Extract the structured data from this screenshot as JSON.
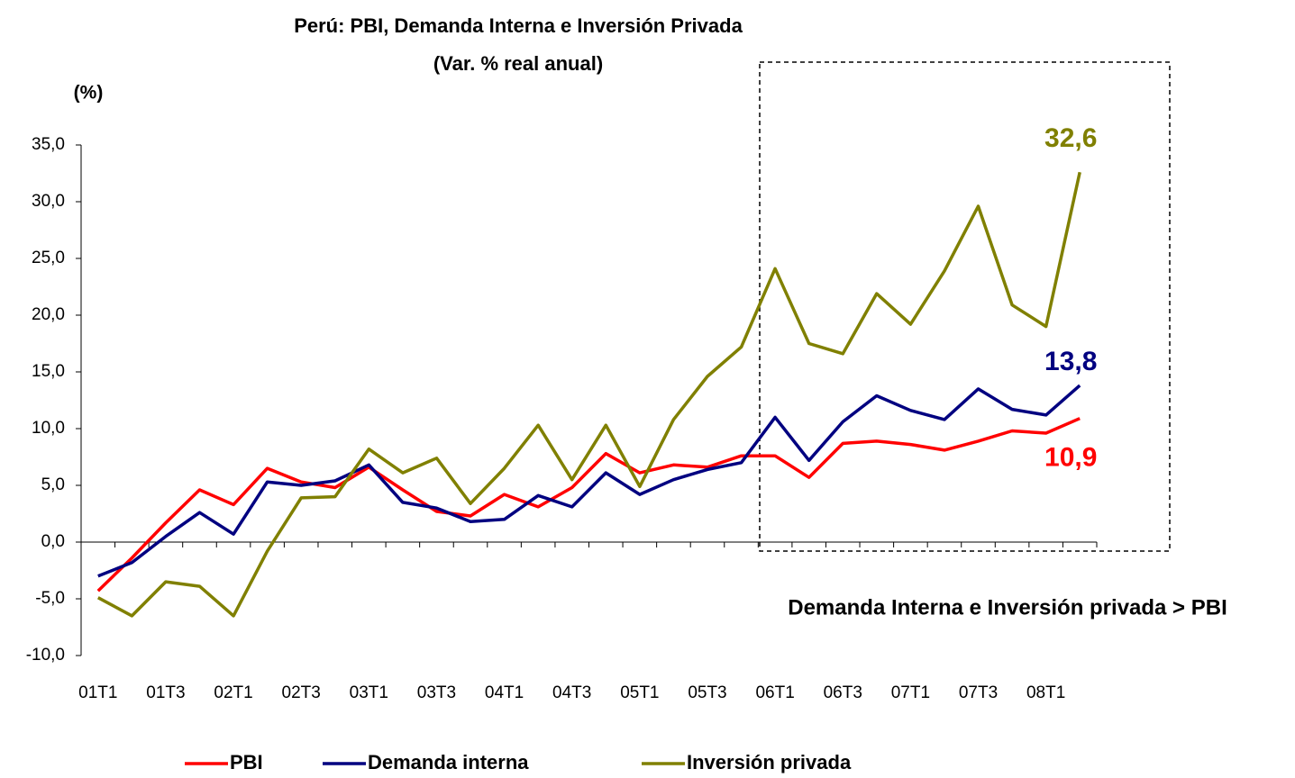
{
  "chart_data": {
    "type": "line",
    "title": "Perú: PBI, Demanda Interna e Inversión Privada",
    "subtitle": "(Var. % real anual)",
    "y_label": "(%)",
    "annotation": "Demanda Interna e Inversión privada > PBI",
    "categories": [
      "01T1",
      null,
      "01T3",
      null,
      "02T1",
      null,
      "02T3",
      null,
      "03T1",
      null,
      "03T3",
      null,
      "04T1",
      null,
      "04T3",
      null,
      "05T1",
      null,
      "05T3",
      null,
      "06T1",
      null,
      "06T3",
      null,
      "07T1",
      null,
      "07T3",
      null,
      "08T1",
      null
    ],
    "series": [
      {
        "name": "PBI",
        "color": "#ff0000",
        "values": [
          -4.3,
          -1.4,
          1.7,
          4.6,
          3.3,
          6.5,
          5.3,
          4.8,
          6.6,
          4.6,
          2.7,
          2.3,
          4.2,
          3.1,
          4.8,
          7.8,
          6.1,
          6.8,
          6.6,
          7.6,
          7.6,
          5.7,
          8.7,
          8.9,
          8.6,
          8.1,
          8.9,
          9.8,
          9.6,
          10.9
        ],
        "value_labels": [
          null,
          null,
          null,
          null,
          null,
          null,
          null,
          null,
          null,
          null,
          null,
          null,
          null,
          null,
          null,
          null,
          null,
          null,
          null,
          null,
          null,
          null,
          null,
          null,
          null,
          null,
          null,
          null,
          null,
          "10,9"
        ]
      },
      {
        "name": "Demanda interna",
        "color": "#000080",
        "values": [
          -3.0,
          -1.8,
          0.5,
          2.6,
          0.7,
          5.3,
          5.0,
          5.4,
          6.8,
          3.5,
          3.0,
          1.8,
          2.0,
          4.1,
          3.1,
          6.1,
          4.2,
          5.5,
          6.4,
          7.0,
          11.0,
          7.2,
          10.6,
          12.9,
          11.6,
          10.8,
          13.5,
          11.7,
          11.2,
          13.8
        ],
        "value_labels": [
          null,
          null,
          null,
          null,
          null,
          null,
          null,
          null,
          null,
          null,
          null,
          null,
          null,
          null,
          null,
          null,
          null,
          null,
          null,
          null,
          null,
          null,
          null,
          null,
          null,
          null,
          null,
          null,
          null,
          "13,8"
        ]
      },
      {
        "name": "Inversión privada",
        "color": "#808000",
        "values": [
          -4.9,
          -6.5,
          -3.5,
          -3.9,
          -6.5,
          -0.8,
          3.9,
          4.0,
          8.2,
          6.1,
          7.4,
          3.4,
          6.5,
          10.3,
          5.5,
          10.3,
          4.9,
          10.8,
          14.6,
          17.2,
          24.1,
          17.5,
          16.6,
          21.9,
          19.2,
          23.9,
          29.6,
          20.9,
          19.0,
          32.6
        ],
        "value_labels": [
          null,
          null,
          null,
          null,
          null,
          null,
          null,
          null,
          null,
          null,
          null,
          null,
          null,
          null,
          null,
          null,
          null,
          null,
          null,
          null,
          null,
          null,
          null,
          null,
          null,
          null,
          null,
          null,
          null,
          "32,6"
        ]
      }
    ],
    "ylim": [
      -10,
      35
    ],
    "yticks": [
      {
        "value": -10,
        "label": "-10,0"
      },
      {
        "value": -5,
        "label": "-5,0"
      },
      {
        "value": 0,
        "label": "0,0"
      },
      {
        "value": 5,
        "label": "5,0"
      },
      {
        "value": 10,
        "label": "10,0"
      },
      {
        "value": 15,
        "label": "15,0"
      },
      {
        "value": 20,
        "label": "20,0"
      },
      {
        "value": 25,
        "label": "25,0"
      },
      {
        "value": 30,
        "label": "30,0"
      },
      {
        "value": 35,
        "label": "35,0"
      }
    ],
    "grid": false,
    "legend": "bottom"
  }
}
